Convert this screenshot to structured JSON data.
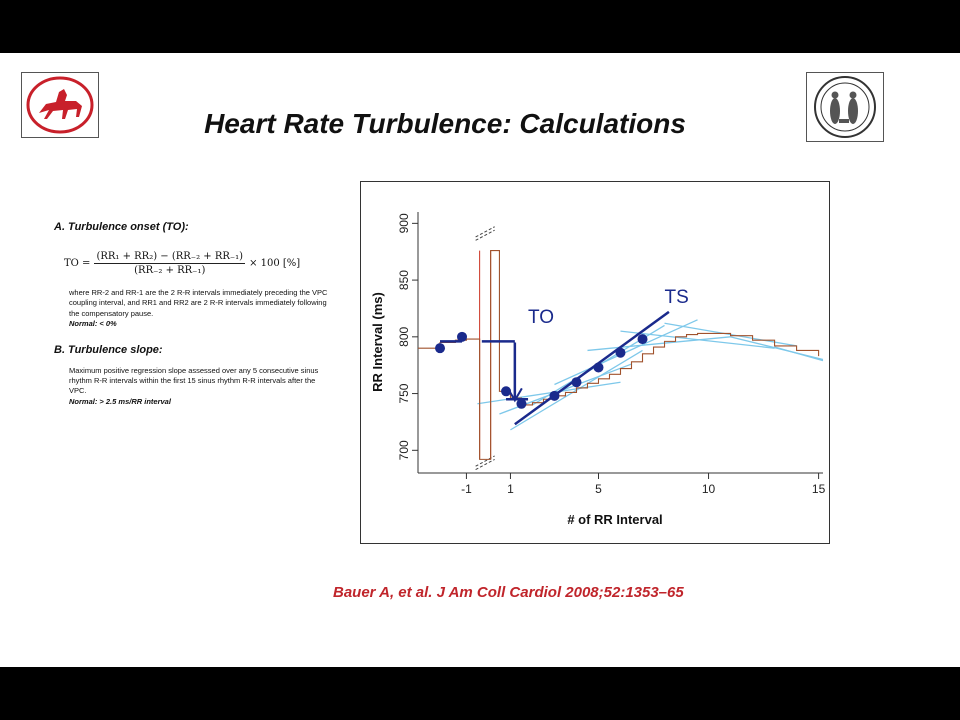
{
  "slide": {
    "title": "Heart Rate Turbulence: Calculations",
    "citation": "Bauer A, et al. J Am Coll Cardiol 2008;52:1353–65"
  },
  "section_a": {
    "heading": "A. Turbulence onset (TO):",
    "formula": {
      "lhs": "TO =",
      "numerator": "(RR₁ + RR₂) − (RR₋₂ + RR₋₁)",
      "denominator": "(RR₋₂ + RR₋₁)",
      "suffix": "× 100  [%]"
    },
    "description": "where RR-2 and RR-1 are the 2 R-R intervals immediately preceding the VPC coupling interval,  and  RR1 and RR2 are 2 R-R intervals immediately following the compensatory pause.",
    "normal": "Normal: < 0%"
  },
  "section_b": {
    "heading": "B. Turbulence slope:",
    "description": "Maximum positive regression slope assessed over any 5 consecutive sinus rhythm R-R intervals within the first 15 sinus rhythm R-R intervals after the VPC.",
    "normal": "Normal: > 2.5 ms/RR interval"
  },
  "chart_data": {
    "type": "line",
    "xlabel": "# of RR Interval",
    "ylabel": "RR Interval (ms)",
    "xlim": [
      -3.2,
      15.2
    ],
    "ylim": [
      680,
      910
    ],
    "x_ticks": [
      -1,
      1,
      5,
      10,
      15
    ],
    "x_tick_labels": [
      "-1",
      "1",
      "5",
      "10",
      "15"
    ],
    "y_ticks": [
      700,
      750,
      800,
      850,
      900
    ],
    "grid": false,
    "annotations": [
      {
        "text": "TO",
        "x": 1.8,
        "y": 812
      },
      {
        "text": "TS",
        "x": 8.0,
        "y": 830
      }
    ],
    "step_series": {
      "color": "#a0522d",
      "x": [
        -3.2,
        -2.2,
        -1.5,
        -1,
        -0.4,
        0.1,
        0.5,
        1,
        1.5,
        2,
        2.5,
        3,
        3.5,
        4,
        4.5,
        5,
        5.5,
        6,
        6.5,
        7,
        7.5,
        8,
        8.5,
        9,
        9.5,
        10,
        11,
        12,
        13,
        14,
        15
      ],
      "y": [
        790,
        795,
        797,
        798,
        692,
        876,
        752,
        746,
        740,
        742,
        745,
        748,
        751,
        755,
        759,
        763,
        767,
        772,
        778,
        785,
        791,
        796,
        800,
        802,
        803,
        803,
        801,
        797,
        792,
        788,
        783
      ]
    },
    "points": {
      "color": "#1a2a8c",
      "x": [
        -2.2,
        -1.2,
        0.8,
        1.5,
        3,
        4,
        5,
        6,
        7
      ],
      "y": [
        790,
        800,
        752,
        741,
        748,
        760,
        773,
        786,
        798
      ]
    },
    "regression_lines": {
      "color": "#7ec8ea",
      "lines": [
        {
          "x": [
            -0.5,
            6
          ],
          "y": [
            741,
            760
          ]
        },
        {
          "x": [
            0.5,
            6.5
          ],
          "y": [
            732,
            776
          ]
        },
        {
          "x": [
            1,
            7
          ],
          "y": [
            718,
            788
          ]
        },
        {
          "x": [
            2,
            8
          ],
          "y": [
            740,
            810
          ]
        },
        {
          "x": [
            3,
            9.5
          ],
          "y": [
            758,
            815
          ]
        },
        {
          "x": [
            4.5,
            11
          ],
          "y": [
            788,
            800
          ]
        },
        {
          "x": [
            6,
            13
          ],
          "y": [
            805,
            790
          ]
        },
        {
          "x": [
            8,
            14
          ],
          "y": [
            812,
            792
          ]
        },
        {
          "x": [
            11,
            15.2
          ],
          "y": [
            800,
            780
          ]
        },
        {
          "x": [
            13,
            15.2
          ],
          "y": [
            791,
            779
          ]
        }
      ]
    },
    "ts_line": {
      "color": "#1a2a8c",
      "x": [
        1.2,
        8.2
      ],
      "y": [
        723,
        822
      ]
    },
    "to_line": {
      "color": "#1a2a8c",
      "x": [
        -2.2,
        -1.2,
        -1.2,
        1.2,
        1.2
      ],
      "y": [
        795,
        795,
        795,
        795,
        752
      ]
    },
    "to_arrow": {
      "x": [
        1.2,
        1.2
      ],
      "y": [
        795,
        744
      ]
    },
    "compensatory_marks": {
      "color": "#cc3322",
      "x": [
        -0.4,
        0.1
      ]
    }
  }
}
